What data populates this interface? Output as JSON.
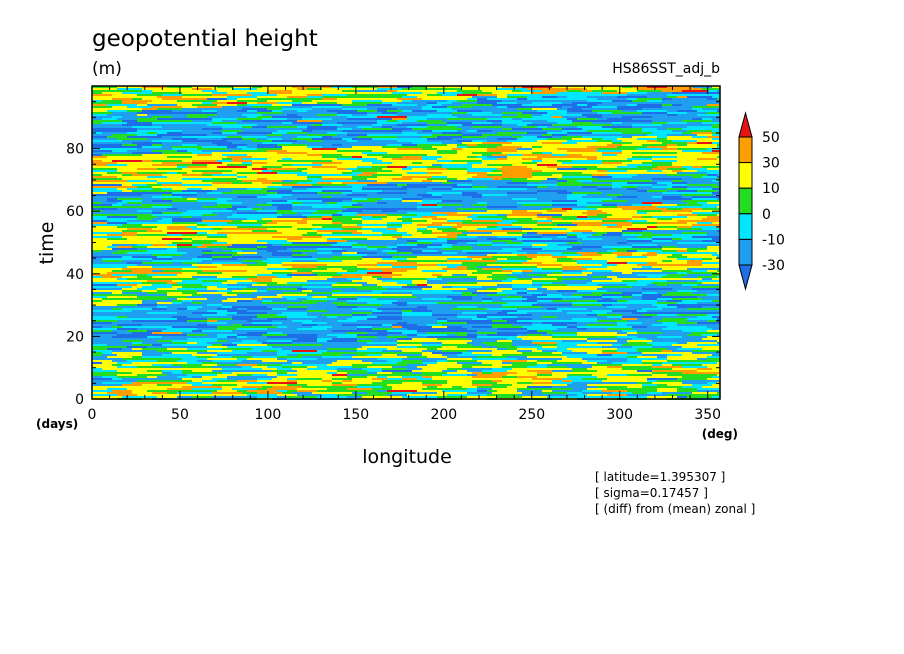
{
  "chart_data": {
    "type": "heatmap",
    "title": "geopotential height",
    "units": "(m)",
    "subtitle_right": "HS86SST_adj_b",
    "xlabel": "longitude",
    "ylabel": "time",
    "x_unit": "(deg)",
    "y_unit": "(days)",
    "xlim": [
      0,
      357
    ],
    "ylim": [
      0,
      100
    ],
    "x_ticks": [
      0,
      50,
      100,
      150,
      200,
      250,
      300,
      350
    ],
    "y_ticks": [
      0,
      20,
      40,
      60,
      80
    ],
    "notes": [
      "[ latitude=1.395307 ]",
      "[ sigma=0.17457 ]",
      "[ (diff) from (mean) zonal ]"
    ],
    "colorbar": {
      "labels": [
        "50",
        "30",
        "10",
        "0",
        "-10",
        "-30"
      ],
      "levels": [
        -30,
        -10,
        0,
        10,
        30,
        50
      ],
      "colors": [
        "#1e6ee8",
        "#1f9ff0",
        "#00e6ff",
        "#22dd22",
        "#ffff00",
        "#ff9e00",
        "#e61414"
      ]
    },
    "field_bands": [
      {
        "time_range": [
          0,
          5
        ],
        "tone": "positive"
      },
      {
        "time_range": [
          5,
          16
        ],
        "tone": "mixed"
      },
      {
        "time_range": [
          16,
          30
        ],
        "tone": "negative"
      },
      {
        "time_range": [
          30,
          36
        ],
        "tone": "mixed"
      },
      {
        "time_range": [
          36,
          42
        ],
        "tone": "positive"
      },
      {
        "time_range": [
          42,
          48
        ],
        "tone": "negative"
      },
      {
        "time_range": [
          48,
          56
        ],
        "tone": "positive"
      },
      {
        "time_range": [
          56,
          66
        ],
        "tone": "negative"
      },
      {
        "time_range": [
          66,
          78
        ],
        "tone": "positive"
      },
      {
        "time_range": [
          78,
          92
        ],
        "tone": "negative"
      },
      {
        "time_range": [
          92,
          100
        ],
        "tone": "positive"
      }
    ]
  }
}
